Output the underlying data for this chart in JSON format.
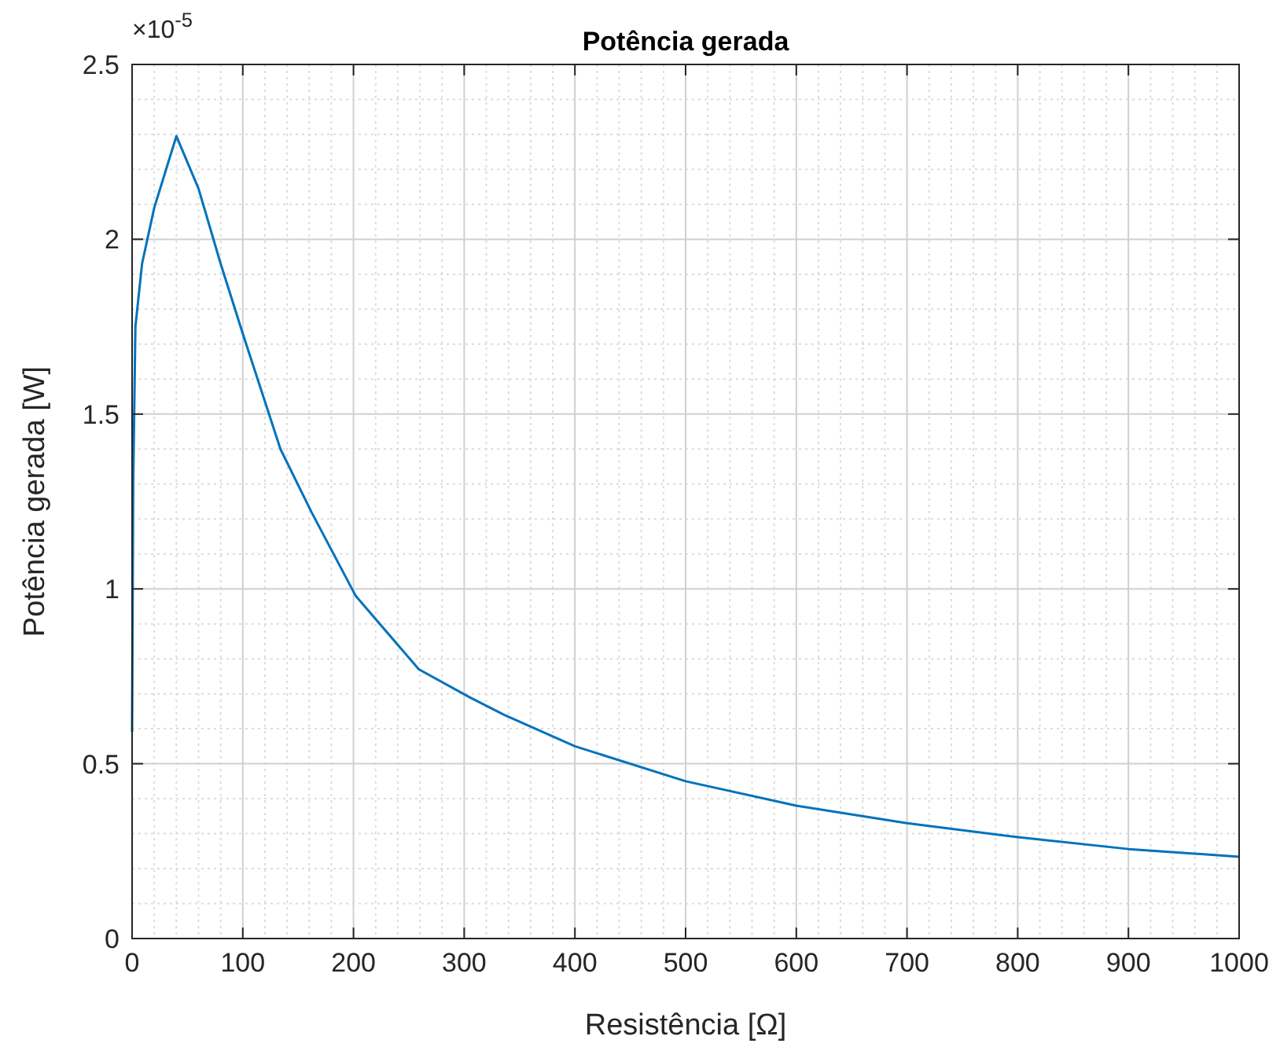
{
  "chart_data": {
    "type": "line",
    "title": "Potência gerada",
    "xlabel": "Resistência [Ω]",
    "ylabel": "Potência gerada [W]",
    "annotations": [
      "×10$^{-5}$"
    ],
    "x": [
      0,
      1,
      3,
      9,
      20,
      40,
      60,
      80,
      100,
      134,
      162,
      202,
      259,
      305,
      336,
      400,
      500,
      600,
      700,
      800,
      900,
      1000
    ],
    "series": [
      {
        "color": "#0072bd",
        "values": [
          0.59,
          1.3,
          1.75,
          1.93,
          2.09,
          2.295,
          2.145,
          1.93,
          1.73,
          1.4,
          1.22,
          0.98,
          0.77,
          0.69,
          0.64,
          0.55,
          0.45,
          0.38,
          0.33,
          0.29,
          0.256,
          0.234
        ]
      }
    ],
    "xlim": [
      0,
      1000
    ],
    "xticks": [
      0,
      {
        "value": 20,
        "label": null
      },
      {
        "value": 40,
        "label": null
      },
      {
        "value": 60,
        "label": null
      },
      {
        "value": 80,
        "label": null
      },
      100,
      {
        "value": 120,
        "label": null
      },
      {
        "value": 140,
        "label": null
      },
      {
        "value": 160,
        "label": null
      },
      {
        "value": 180,
        "label": null
      },
      200,
      {
        "value": 220,
        "label": null
      },
      {
        "value": 240,
        "label": null
      },
      {
        "value": 260,
        "label": null
      },
      {
        "value": 280,
        "label": null
      },
      300,
      {
        "value": 320,
        "label": null
      },
      {
        "value": 340,
        "label": null
      },
      {
        "value": 360,
        "label": null
      },
      {
        "value": 380,
        "label": null
      },
      400,
      {
        "value": 420,
        "label": null
      },
      {
        "value": 440,
        "label": null
      },
      {
        "value": 460,
        "label": null
      },
      {
        "value": 480,
        "label": null
      },
      500,
      {
        "value": 520,
        "label": null
      },
      {
        "value": 540,
        "label": null
      },
      {
        "value": 560,
        "label": null
      },
      {
        "value": 580,
        "label": null
      },
      600,
      {
        "value": 620,
        "label": null
      },
      {
        "value": 640,
        "label": null
      },
      {
        "value": 660,
        "label": null
      },
      {
        "value": 680,
        "label": null
      },
      700,
      {
        "value": 720,
        "label": null
      },
      {
        "value": 740,
        "label": null
      },
      {
        "value": 760,
        "label": null
      },
      {
        "value": 780,
        "label": null
      },
      800,
      {
        "value": 820,
        "label": null
      },
      {
        "value": 840,
        "label": null
      },
      {
        "value": 860,
        "label": null
      },
      {
        "value": 880,
        "label": null
      },
      900,
      {
        "value": 920,
        "label": null
      },
      {
        "value": 940,
        "label": null
      },
      {
        "value": 960,
        "label": null
      },
      {
        "value": 980,
        "label": null
      },
      1000
    ],
    "ylim": [
      0,
      2.5
    ],
    "yticks": [
      0,
      {
        "value": 0.1,
        "label": null
      },
      {
        "value": 0.2,
        "label": null
      },
      {
        "value": 0.3,
        "label": null
      },
      {
        "value": 0.4,
        "label": null
      },
      0.5,
      {
        "value": 0.6,
        "label": null
      },
      {
        "value": 0.7,
        "label": null
      },
      {
        "value": 0.8,
        "label": null
      },
      {
        "value": 0.9,
        "label": null
      },
      1,
      {
        "value": 1.1,
        "label": null
      },
      {
        "value": 1.2,
        "label": null
      },
      {
        "value": 1.3,
        "label": null
      },
      {
        "value": 1.4,
        "label": null
      },
      1.5,
      {
        "value": 1.6,
        "label": null
      },
      {
        "value": 1.7,
        "label": null
      },
      {
        "value": 1.8,
        "label": null
      },
      {
        "value": 1.9,
        "label": null
      },
      2,
      {
        "value": 2.1,
        "label": null
      },
      {
        "value": 2.2,
        "label": null
      },
      {
        "value": 2.3,
        "label": null
      },
      {
        "value": 2.4,
        "label": null
      },
      2.5
    ],
    "grid": true,
    "marker": "none",
    "line_style": "solid"
  }
}
